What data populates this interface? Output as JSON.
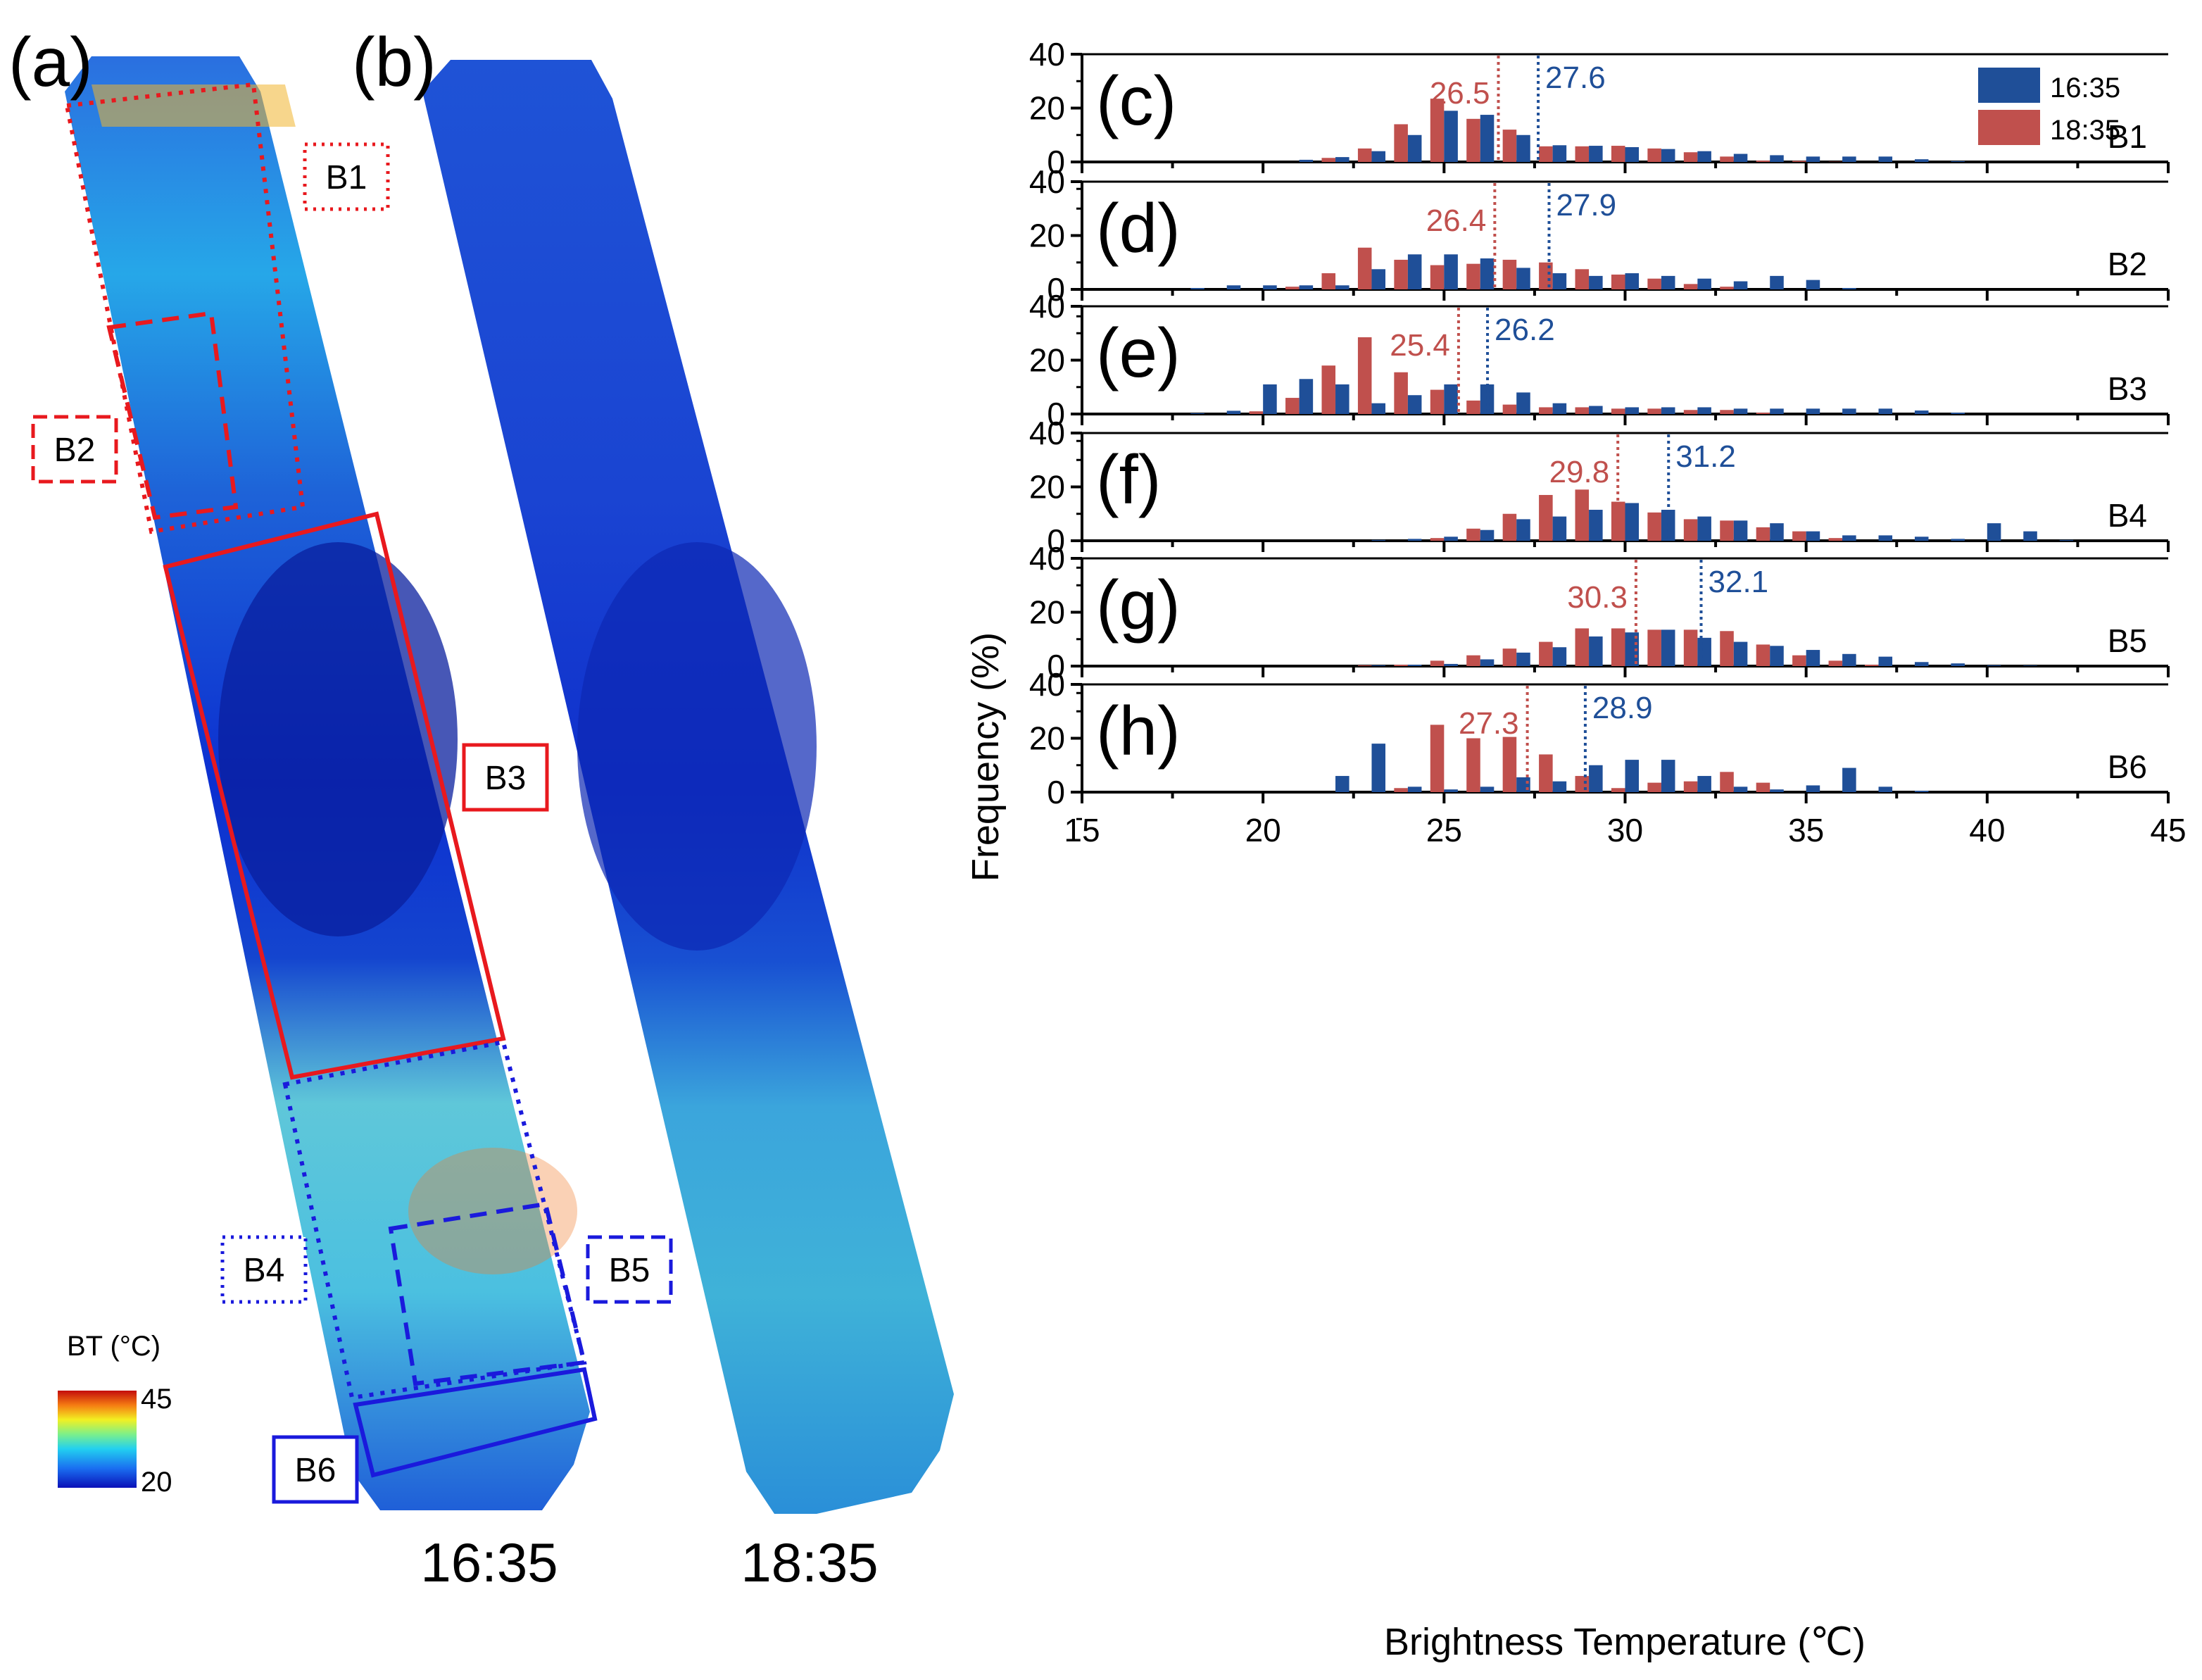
{
  "colors": {
    "series_1635": "#1f4f98",
    "series_1835": "#c0504d",
    "box_red": "#e8191e",
    "box_blue": "#1a1adc"
  },
  "maps": {
    "panel_a_letter": "(a)",
    "panel_b_letter": "(b)",
    "time_a": "16:35",
    "time_b": "18:35",
    "colorbar": {
      "title": "BT (°C)",
      "max_label": "45",
      "min_label": "20"
    },
    "blocks": [
      "B1",
      "B2",
      "B3",
      "B4",
      "B5",
      "B6"
    ]
  },
  "chart_data": {
    "type": "bar",
    "ylabel": "Frequency (%)",
    "xlabel": "Brightness Temperature (℃)",
    "xlim": [
      15,
      45
    ],
    "ylim": [
      0,
      40
    ],
    "x_ticks": [
      "15",
      "20",
      "25",
      "30",
      "35",
      "40",
      "45"
    ],
    "y_ticks": [
      "0",
      "20",
      "40"
    ],
    "legend": [
      "16:35",
      "18:35"
    ],
    "bin_width": 1,
    "panels": [
      {
        "letter": "(c)",
        "block": "B1",
        "bins": [
          18,
          19,
          20,
          21,
          22,
          23,
          24,
          25,
          26,
          27,
          28,
          29,
          30,
          31,
          32,
          33,
          34,
          35,
          36,
          37,
          38,
          39
        ],
        "s1635": [
          0,
          0,
          0,
          0.8,
          1.8,
          4,
          10,
          19,
          17.5,
          10,
          6.2,
          6,
          5.5,
          4.8,
          4,
          3,
          2.5,
          2,
          2,
          2,
          1,
          0.3
        ],
        "s1835": [
          0,
          0,
          0,
          0,
          1.5,
          5,
          14,
          23.5,
          16,
          12,
          5.8,
          5.8,
          6,
          5,
          3.6,
          2,
          0.5,
          0.4,
          0.1,
          0,
          0,
          0
        ],
        "mean_1835": 26.5,
        "mean_1635": 27.6,
        "mean_1835_label": "26.5",
        "mean_1635_label": "27.6"
      },
      {
        "letter": "(d)",
        "block": "B2",
        "bins": [
          18,
          19,
          20,
          21,
          22,
          23,
          24,
          25,
          26,
          27,
          28,
          29,
          30,
          31,
          32,
          33,
          34,
          35,
          36,
          37
        ],
        "s1635": [
          0.5,
          1.5,
          1.5,
          1.5,
          1.5,
          7.5,
          13,
          13,
          11.5,
          8,
          6,
          5,
          6,
          5,
          4,
          3,
          5,
          3.5,
          0.5,
          0
        ],
        "s1835": [
          0,
          0,
          0,
          1,
          6,
          15.5,
          11,
          9,
          9.5,
          11,
          10,
          7.5,
          5.5,
          4,
          2,
          1,
          0,
          0,
          0,
          0
        ],
        "mean_1835": 26.4,
        "mean_1635": 27.9,
        "mean_1835_label": "26.4",
        "mean_1635_label": "27.9"
      },
      {
        "letter": "(e)",
        "block": "B3",
        "bins": [
          18,
          19,
          20,
          21,
          22,
          23,
          24,
          25,
          26,
          27,
          28,
          29,
          30,
          31,
          32,
          33,
          34,
          35,
          36,
          37,
          38,
          39
        ],
        "s1635": [
          0.3,
          1.2,
          11,
          13,
          11,
          4,
          7,
          11,
          11,
          8,
          4,
          3,
          2.5,
          2.5,
          2.5,
          2,
          2,
          2,
          2,
          2,
          1.3,
          0.5
        ],
        "s1835": [
          0,
          0,
          1,
          6,
          18,
          28.5,
          15.5,
          9,
          5,
          3.5,
          2.5,
          2.5,
          2,
          2,
          1.5,
          1.5,
          0.5,
          0,
          0,
          0,
          0,
          0
        ],
        "mean_1835": 25.4,
        "mean_1635": 26.2,
        "mean_1835_label": "25.4",
        "mean_1635_label": "26.2"
      },
      {
        "letter": "(f)",
        "block": "B4",
        "bins": [
          22,
          23,
          24,
          25,
          26,
          27,
          28,
          29,
          30,
          31,
          32,
          33,
          34,
          35,
          36,
          37,
          38,
          39,
          40,
          41,
          42
        ],
        "s1635": [
          0,
          0.3,
          0.7,
          1.5,
          4,
          8,
          9,
          11.5,
          14,
          11.5,
          9,
          7.5,
          6.5,
          3.5,
          2,
          2,
          1.5,
          0.7,
          6.5,
          3.5,
          0.3
        ],
        "s1835": [
          0,
          0,
          0,
          1,
          4.5,
          10,
          17,
          19,
          14.5,
          10.5,
          8,
          7.5,
          5,
          3.5,
          1,
          0,
          0,
          0,
          0,
          0,
          0
        ],
        "mean_1835": 29.8,
        "mean_1635": 31.2,
        "mean_1835_label": "29.8",
        "mean_1635_label": "31.2"
      },
      {
        "letter": "(g)",
        "block": "B5",
        "bins": [
          23,
          24,
          25,
          26,
          27,
          28,
          29,
          30,
          31,
          32,
          33,
          34,
          35,
          36,
          37,
          38,
          39,
          40,
          41
        ],
        "s1635": [
          0.3,
          0.5,
          0.8,
          2.5,
          5,
          7,
          11,
          12.5,
          13.5,
          10.5,
          9,
          7.5,
          6,
          4.5,
          3.5,
          1.5,
          1,
          0.3,
          0.2
        ],
        "s1835": [
          0.3,
          0.5,
          2,
          4,
          6.5,
          9,
          14,
          14,
          13.5,
          13.5,
          13,
          8,
          4,
          2,
          0.5,
          0,
          0,
          0,
          0
        ],
        "mean_1835": 30.3,
        "mean_1635": 32.1,
        "mean_1835_label": "30.3",
        "mean_1635_label": "32.1"
      },
      {
        "letter": "(h)",
        "block": "B6",
        "bins": [
          22,
          23,
          24,
          25,
          26,
          27,
          28,
          29,
          30,
          31,
          32,
          33,
          34,
          35,
          36,
          37,
          38,
          39
        ],
        "s1635": [
          6,
          18,
          2,
          1,
          2,
          5.5,
          4,
          10,
          12,
          12,
          6,
          2,
          1,
          2.5,
          9,
          2,
          0.5,
          0
        ],
        "s1835": [
          0,
          0,
          1.5,
          25,
          20,
          20.5,
          14,
          6,
          1.5,
          3.5,
          4,
          7.5,
          3.5,
          0,
          0,
          0,
          0,
          0
        ],
        "mean_1835": 27.3,
        "mean_1635": 28.9,
        "mean_1835_label": "27.3",
        "mean_1635_label": "28.9"
      }
    ]
  }
}
